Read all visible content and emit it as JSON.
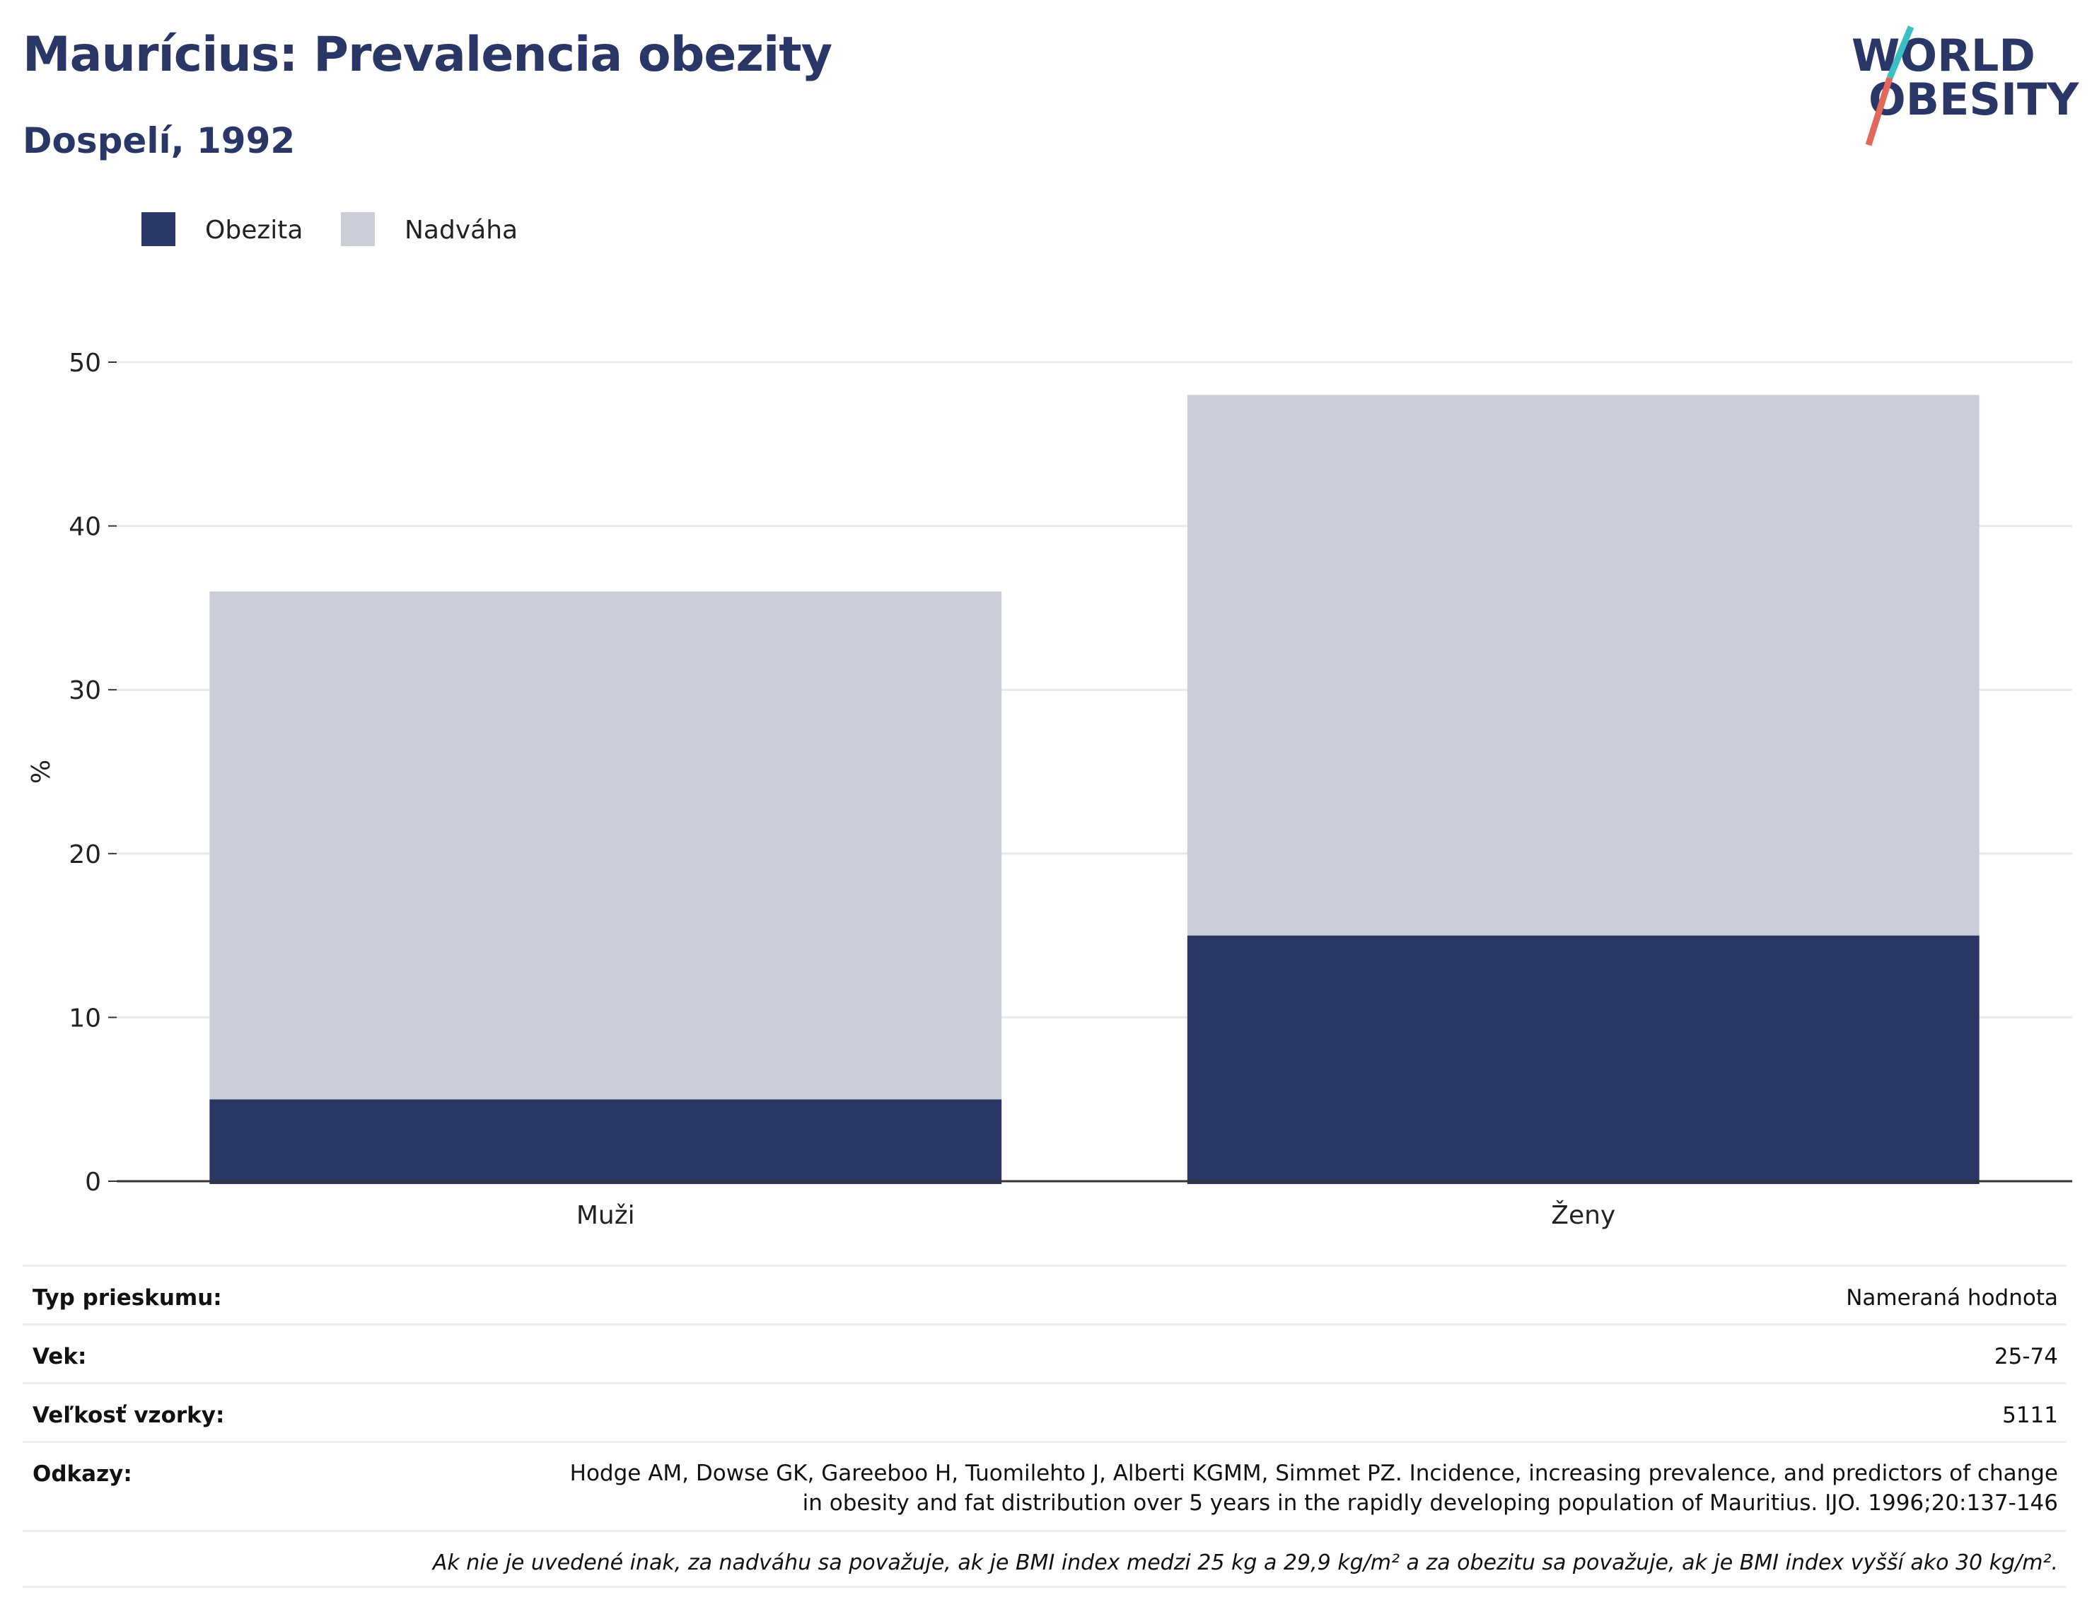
{
  "title": "Maurícius: Prevalencia obezity",
  "subtitle": "Dospelí, 1992",
  "logo": {
    "line1": "WORLD",
    "line2": "OBESITY",
    "accent_colors": [
      "#3bbfc4",
      "#e4675b"
    ]
  },
  "colors": {
    "obesity": "#2a3665",
    "overweight": "#cbcdd8",
    "text": "#2a3665",
    "grid": "#e8e9ee"
  },
  "chart_data": {
    "type": "bar",
    "stacked": true,
    "categories": [
      "Muži",
      "Ženy"
    ],
    "series": [
      {
        "name": "Obezita",
        "values": [
          5,
          15
        ]
      },
      {
        "name": "Nadváha",
        "values": [
          31,
          33
        ]
      }
    ],
    "ylabel": "%",
    "ylim": [
      0,
      50
    ],
    "yticks": [
      0,
      10,
      20,
      30,
      40,
      50
    ],
    "grid": true,
    "legend_position": "top-left"
  },
  "info": {
    "survey_type_label": "Typ prieskumu:",
    "survey_type_value": "Nameraná hodnota",
    "age_label": "Vek:",
    "age_value": "25-74",
    "sample_label": "Veľkosť vzorky:",
    "sample_value": "5111",
    "refs_label": "Odkazy:",
    "refs_line1": "Hodge AM, Dowse GK, Gareeboo H, Tuomilehto J, Alberti KGMM, Simmet PZ. Incidence, increasing prevalence, and predictors of change",
    "refs_line2": "in obesity and fat distribution over 5 years in the rapidly developing population of Mauritius. IJO. 1996;20:137-146",
    "note": "Ak nie je uvedené inak, za nadváhu sa považuje, ak je BMI index medzi 25 kg a 29,9 kg/m² a za obezitu sa považuje, ak je BMI index vyšší ako 30 kg/m²."
  }
}
